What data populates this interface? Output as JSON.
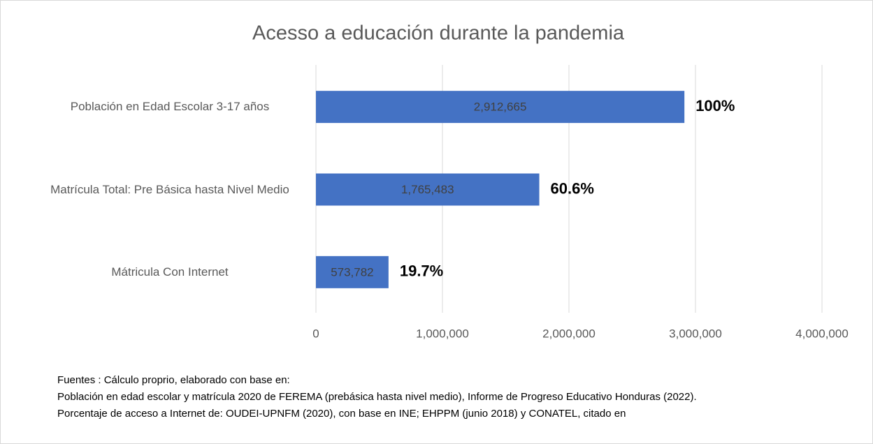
{
  "chart_data": {
    "type": "bar",
    "orientation": "horizontal",
    "title": "Acesso a educación durante la pandemia",
    "categories": [
      "Población en Edad Escolar 3-17 años",
      "Matrícula Total: Pre Básica hasta Nivel Medio",
      "Mátricula Con Internet"
    ],
    "values": [
      2912665,
      1765483,
      573782
    ],
    "value_labels": [
      "2,912,665",
      "1,765,483",
      "573,782"
    ],
    "annotations": [
      "100%",
      "60.6%",
      "19.7%"
    ],
    "color": "#4472c4",
    "xlim": [
      0,
      4000000
    ],
    "xticks": [
      0,
      {
        "value": 1000000,
        "label": "1,000,000"
      },
      {
        "value": 2000000,
        "label": "2,000,000"
      },
      {
        "value": 3000000,
        "label": "3,000,000"
      },
      {
        "value": 4000000,
        "label": "4,000,000"
      }
    ],
    "grid": true
  },
  "notes": [
    "Fuentes : Cálculo proprio, elaborado con base en:",
    "Población en edad escolar y matrícula 2020 de FEREMA (prebásica hasta nivel medio), Informe de Progreso Educativo Honduras (2022).",
    "Porcentaje de acceso a Internet de: OUDEI-UPNFM (2020), con base en INE; EHPPM (junio 2018) y CONATEL, citado en"
  ]
}
